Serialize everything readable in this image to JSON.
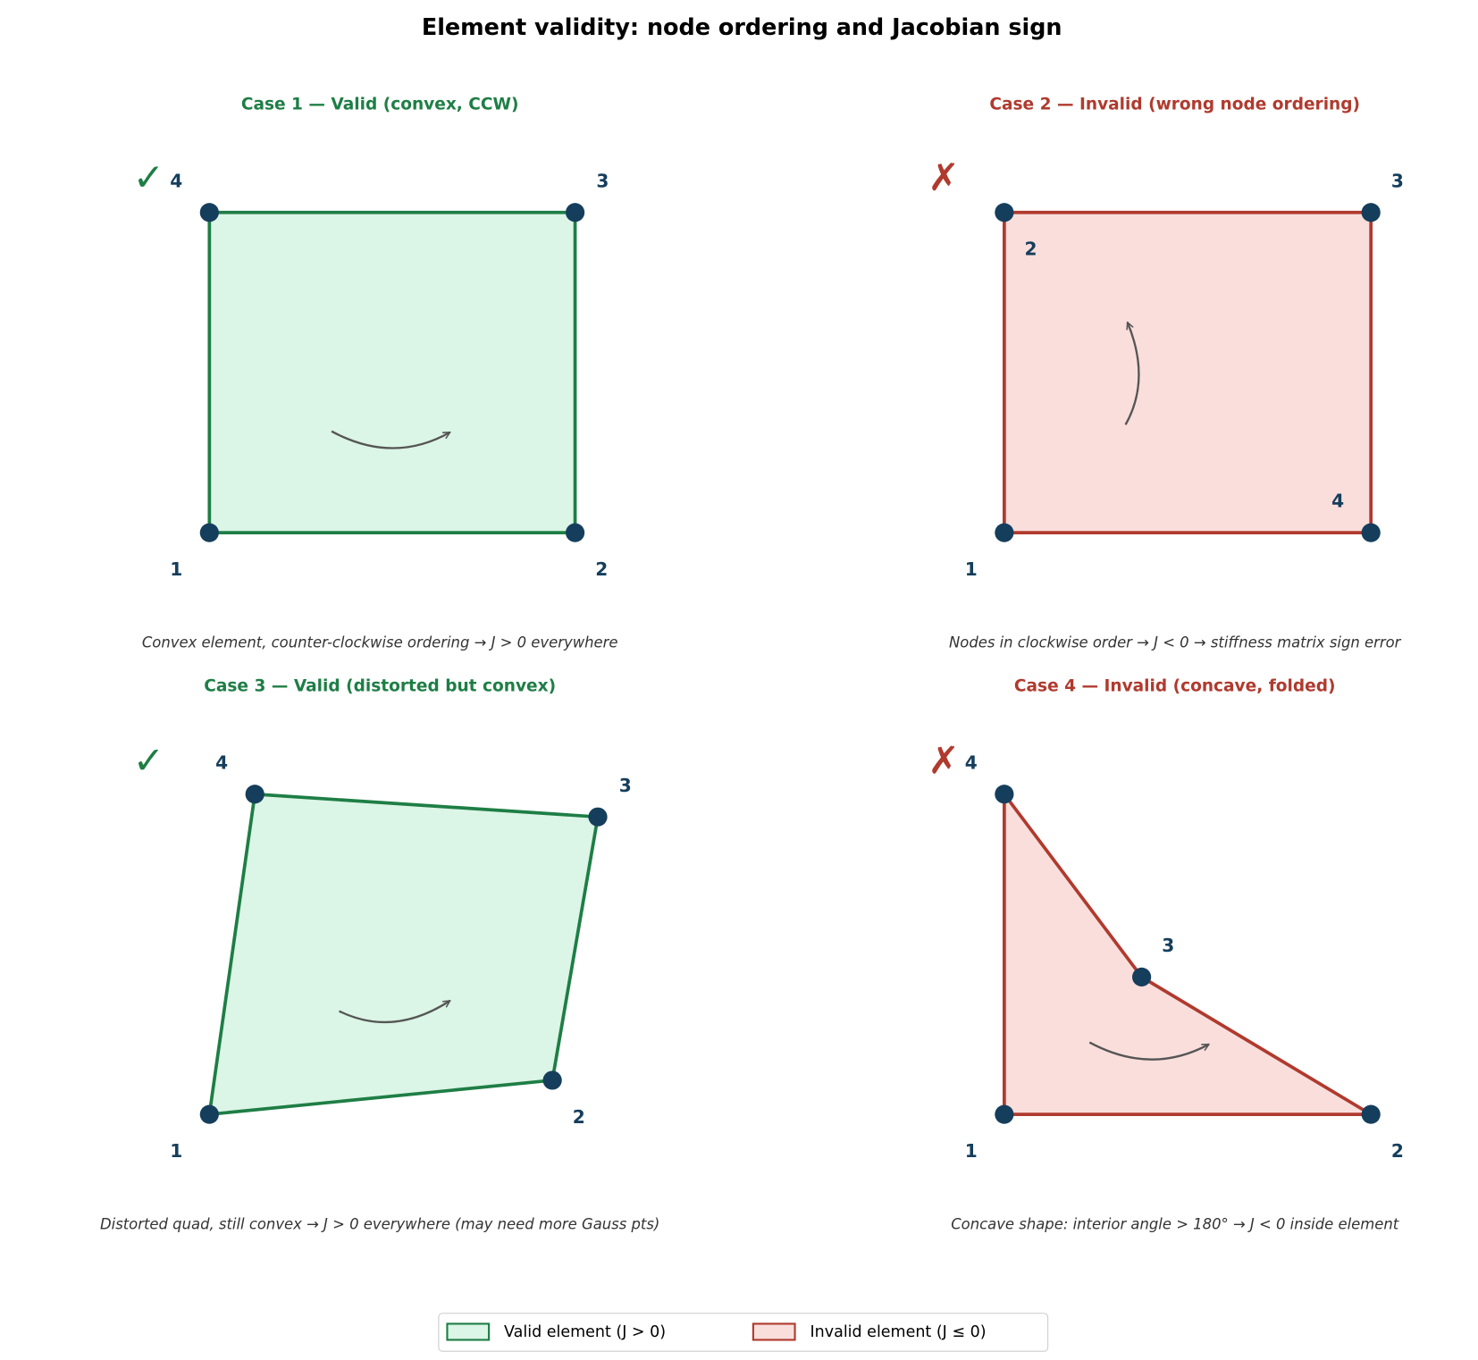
{
  "title": "Element validity: node ordering and Jacobian sign",
  "panels": [
    {
      "title": "Case 1 — Valid (convex, CCW)",
      "symbol": "✓",
      "caption": "Convex element, counter-clockwise ordering → J > 0 everywhere",
      "nodes": [
        "1",
        "2",
        "3",
        "4"
      ],
      "color": "#1e7e45",
      "fill": "#dbf5e6"
    },
    {
      "title": "Case 2 — Invalid (wrong node ordering)",
      "symbol": "✗",
      "caption": "Nodes in clockwise order → J < 0 → stiffness matrix sign error",
      "nodes": [
        "1",
        "2",
        "3",
        "4"
      ],
      "color": "#b03a2e",
      "fill": "#f9dedc"
    },
    {
      "title": "Case 3 — Valid (distorted but convex)",
      "symbol": "✓",
      "caption": "Distorted quad, still convex → J > 0 everywhere (may need more Gauss pts)",
      "nodes": [
        "1",
        "2",
        "3",
        "4"
      ],
      "color": "#1e7e45",
      "fill": "#dbf5e6"
    },
    {
      "title": "Case 4 — Invalid (concave, folded)",
      "symbol": "✗",
      "caption": "Concave shape: interior angle > 180° → J < 0 inside element",
      "nodes": [
        "1",
        "2",
        "3",
        "4"
      ],
      "color": "#b03a2e",
      "fill": "#f9dedc"
    }
  ],
  "legend": [
    {
      "label": "Valid element (J > 0)",
      "color": "#1e7e45",
      "fill": "#dbf5e6"
    },
    {
      "label": "Invalid element (J ≤ 0)",
      "color": "#b03a2e",
      "fill": "#f9dedc"
    }
  ]
}
